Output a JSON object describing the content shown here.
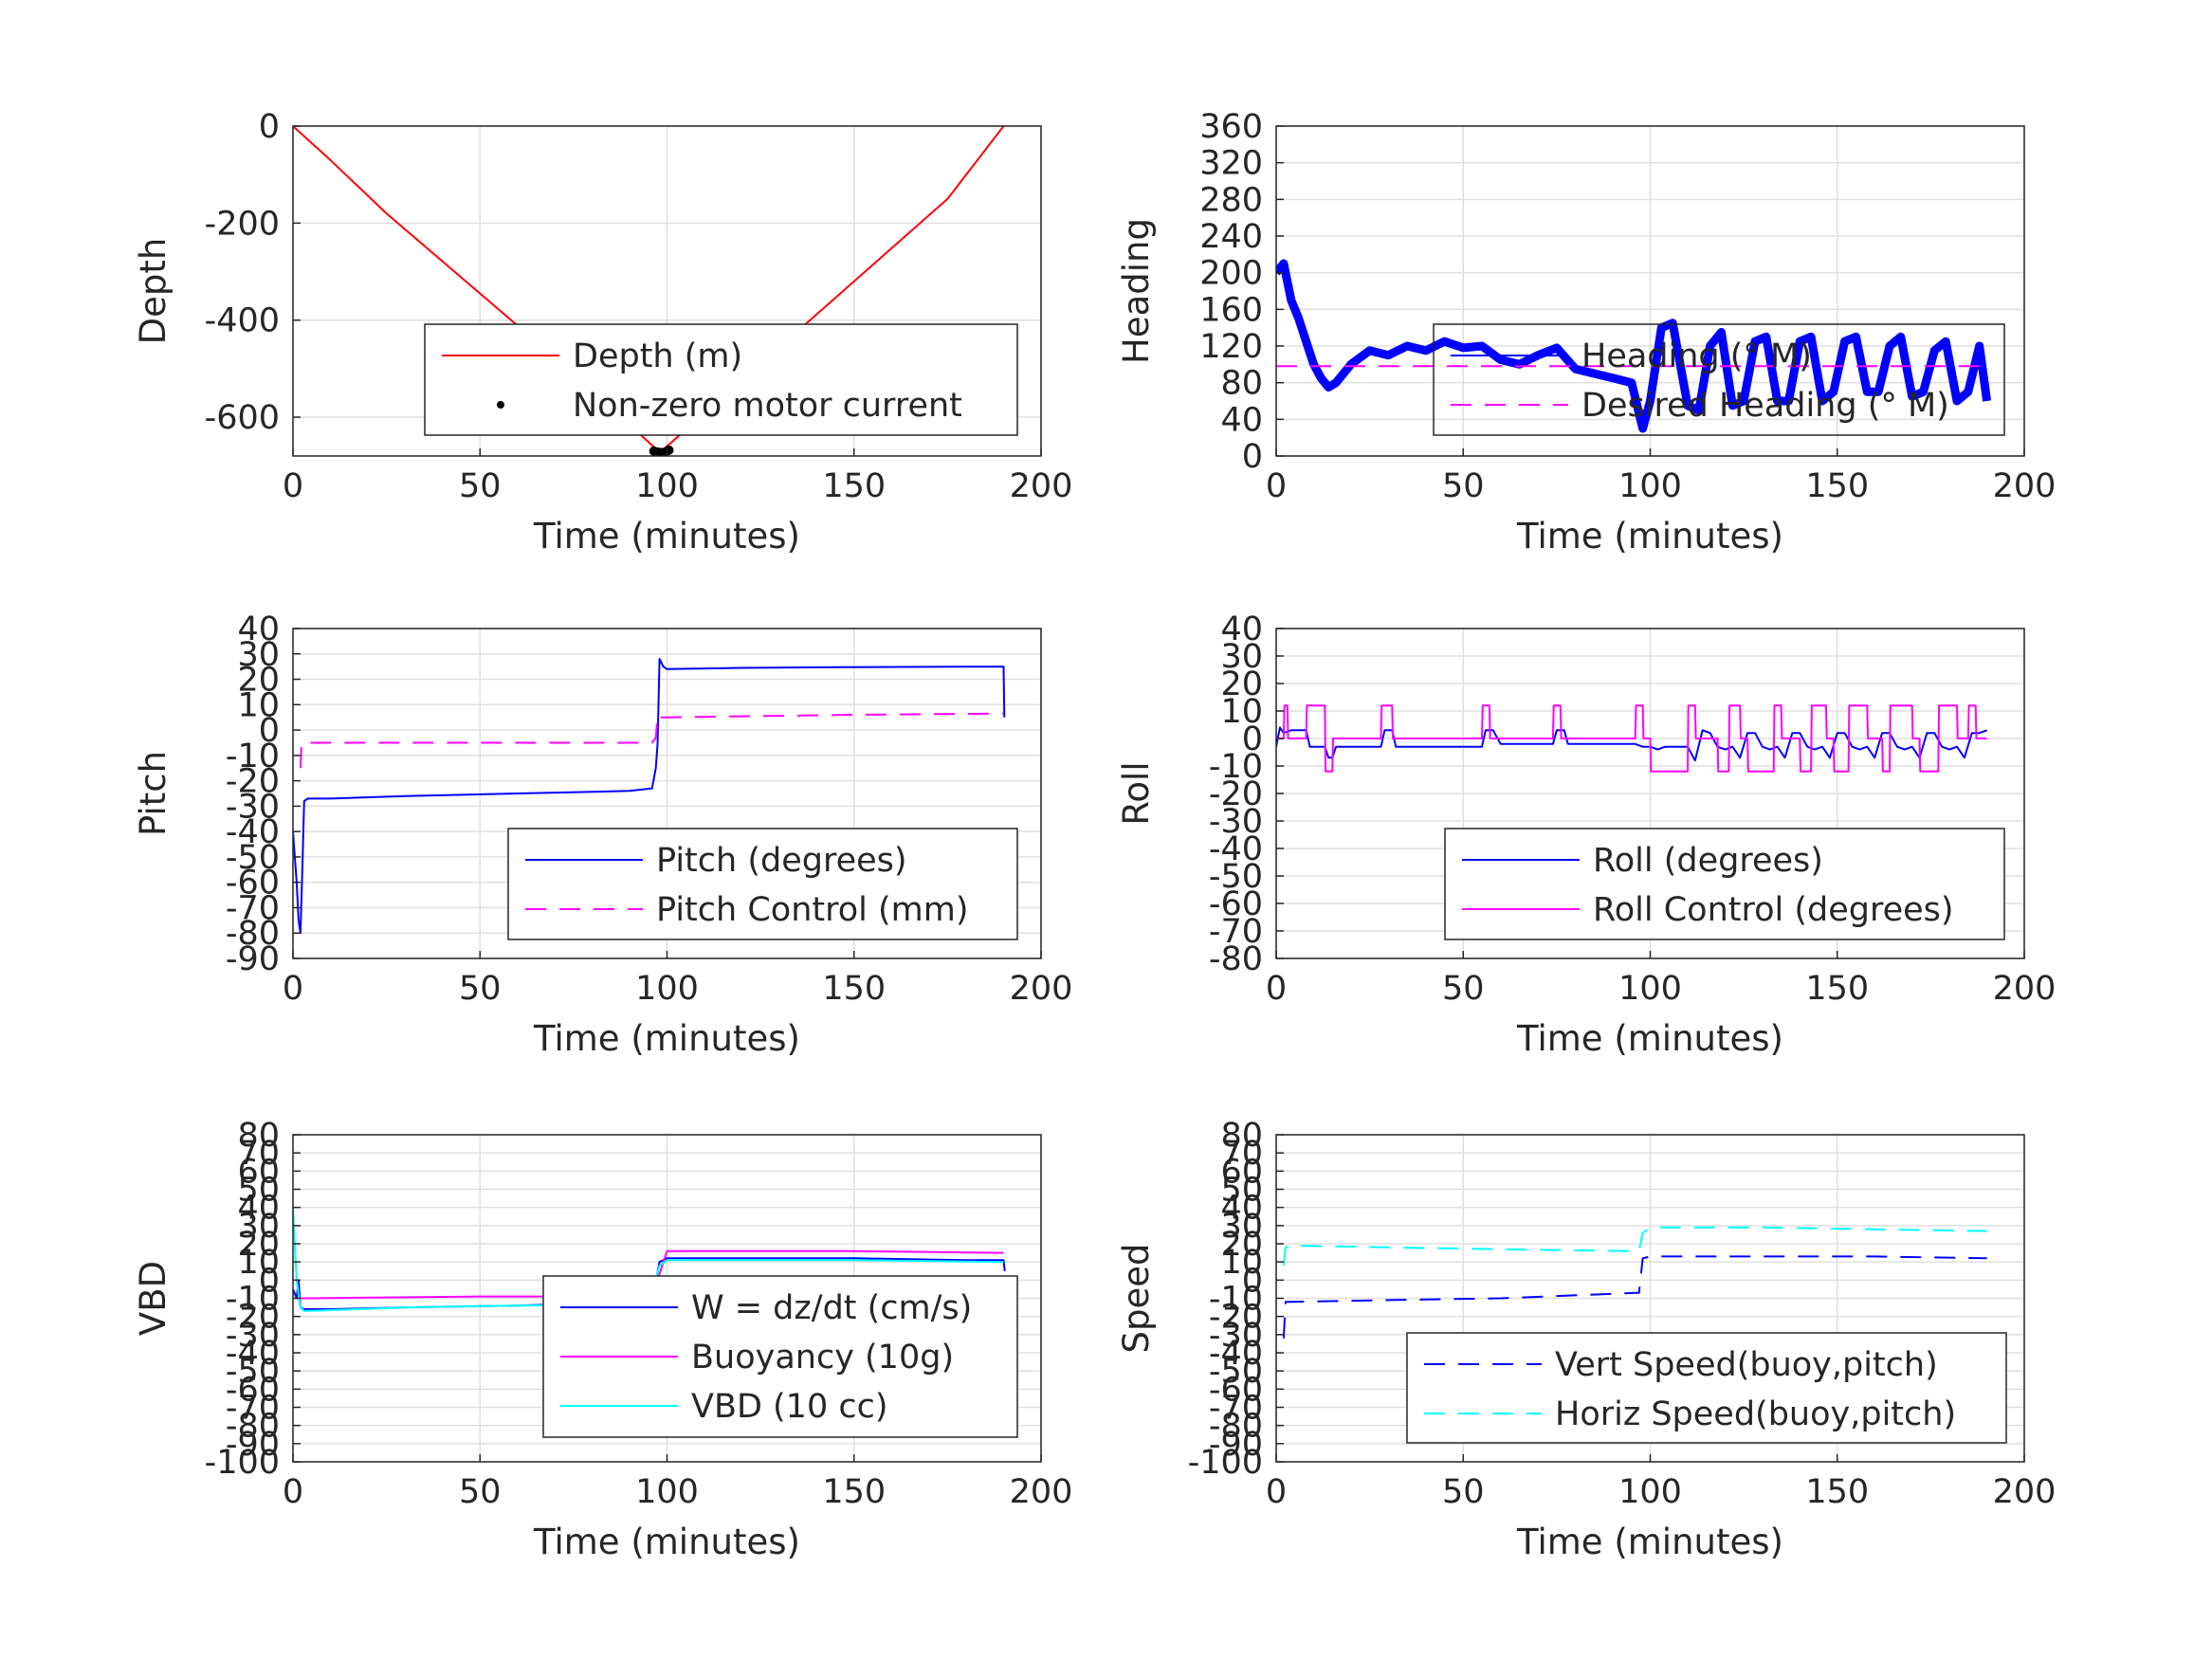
{
  "chart_data": [
    {
      "id": "depth",
      "type": "line",
      "xlabel": "Time (minutes)",
      "ylabel": "Depth",
      "xlim": [
        0,
        200
      ],
      "ylim": [
        -680,
        0
      ],
      "xticks": [
        0,
        50,
        100,
        150,
        200
      ],
      "yticks": [
        0,
        -200,
        -400,
        -600
      ],
      "grid": true,
      "legend": {
        "placement": "bottom-right",
        "entries": [
          "Depth (m)",
          "Non-zero motor current"
        ]
      },
      "series": [
        {
          "name": "Depth (m)",
          "color": "#ff0000",
          "style": "solid",
          "x": [
            0,
            10,
            25,
            50,
            75,
            98,
            100,
            125,
            150,
            175,
            190
          ],
          "y": [
            0,
            -70,
            -180,
            -345,
            -510,
            -672,
            -660,
            -490,
            -320,
            -150,
            0
          ]
        },
        {
          "name": "Non-zero motor current",
          "color": "#000000",
          "style": "dots",
          "x": [
            96.5,
            97.5,
            98.5,
            99.5,
            100.5
          ],
          "y": [
            -670,
            -672,
            -673,
            -672,
            -668
          ]
        }
      ]
    },
    {
      "id": "heading",
      "type": "line",
      "xlabel": "Time (minutes)",
      "ylabel": "Heading",
      "xlim": [
        0,
        200
      ],
      "ylim": [
        0,
        360
      ],
      "xticks": [
        0,
        50,
        100,
        150,
        200
      ],
      "yticks": [
        0,
        40,
        80,
        120,
        160,
        200,
        240,
        280,
        320,
        360
      ],
      "grid": true,
      "legend": {
        "placement": "right",
        "entries": [
          "Heading (° M)",
          "Desired Heading (° M)"
        ]
      },
      "series": [
        {
          "name": "Heading (° M)",
          "color": "#0000ff",
          "style": "thick",
          "x": [
            0,
            2,
            4,
            6,
            8,
            10,
            12,
            14,
            16,
            20,
            25,
            30,
            35,
            40,
            45,
            50,
            55,
            60,
            65,
            70,
            75,
            80,
            85,
            90,
            95,
            98,
            100,
            103,
            106,
            110,
            113,
            116,
            119,
            122,
            125,
            128,
            131,
            134,
            137,
            140,
            143,
            146,
            149,
            152,
            155,
            158,
            161,
            164,
            167,
            170,
            173,
            176,
            179,
            182,
            185,
            188,
            190
          ],
          "y": [
            200,
            210,
            170,
            150,
            125,
            100,
            85,
            75,
            80,
            100,
            115,
            110,
            120,
            115,
            125,
            118,
            120,
            105,
            100,
            110,
            118,
            95,
            90,
            85,
            80,
            30,
            60,
            140,
            145,
            55,
            50,
            120,
            135,
            55,
            60,
            125,
            130,
            60,
            60,
            125,
            130,
            60,
            70,
            125,
            130,
            70,
            70,
            120,
            130,
            65,
            70,
            115,
            125,
            60,
            70,
            120,
            60
          ]
        },
        {
          "name": "Desired Heading (° M)",
          "color": "#ff00ff",
          "style": "dashed",
          "x": [
            0,
            190
          ],
          "y": [
            98,
            98
          ]
        }
      ]
    },
    {
      "id": "pitch",
      "type": "line",
      "xlabel": "Time (minutes)",
      "ylabel": "Pitch",
      "xlim": [
        0,
        200
      ],
      "ylim": [
        -90,
        40
      ],
      "xticks": [
        0,
        50,
        100,
        150,
        200
      ],
      "yticks": [
        40,
        30,
        20,
        10,
        0,
        -10,
        -20,
        -30,
        -40,
        -50,
        -60,
        -70,
        -80,
        -90
      ],
      "grid": true,
      "legend": {
        "placement": "bottom-right",
        "entries": [
          "Pitch (degrees)",
          "Pitch Control (mm)"
        ]
      },
      "series": [
        {
          "name": "Pitch (degrees)",
          "color": "#0000ff",
          "style": "solid",
          "x": [
            0,
            1,
            1.5,
            2,
            2.5,
            3,
            4,
            10,
            30,
            60,
            90,
            96,
            97,
            97.5,
            98,
            99,
            100,
            120,
            150,
            180,
            190,
            190.2
          ],
          "y": [
            -40,
            -60,
            -75,
            -80,
            -55,
            -28,
            -27,
            -27,
            -26,
            -25,
            -24,
            -23,
            -15,
            -5,
            28,
            25,
            24,
            24.5,
            24.8,
            25,
            25,
            5
          ]
        },
        {
          "name": "Pitch Control (mm)",
          "color": "#ff00ff",
          "style": "dashed",
          "x": [
            2,
            2.3,
            3,
            50,
            96,
            97,
            97.5,
            98,
            100,
            150,
            190
          ],
          "y": [
            -15,
            -5,
            -5,
            -5,
            -5,
            -3,
            6,
            5,
            5,
            6,
            6.5
          ]
        }
      ]
    },
    {
      "id": "roll",
      "type": "line",
      "xlabel": "Time (minutes)",
      "ylabel": "Roll",
      "xlim": [
        0,
        200
      ],
      "ylim": [
        -80,
        40
      ],
      "xticks": [
        0,
        50,
        100,
        150,
        200
      ],
      "yticks": [
        40,
        30,
        20,
        10,
        0,
        -10,
        -20,
        -30,
        -40,
        -50,
        -60,
        -70,
        -80
      ],
      "grid": true,
      "legend": {
        "placement": "bottom-right",
        "entries": [
          "Roll (degrees)",
          "Roll Control (degrees)"
        ]
      },
      "series": [
        {
          "name": "Roll (degrees)",
          "color": "#0000ff",
          "style": "solid",
          "x": [
            0,
            1,
            2,
            4,
            8,
            9,
            12,
            13,
            14,
            15,
            16,
            20,
            28,
            29,
            31,
            32,
            40,
            55,
            56,
            58,
            60,
            74,
            75,
            77,
            78,
            95,
            96,
            98,
            100,
            102,
            104,
            110,
            112,
            114,
            116,
            118,
            120,
            122,
            124,
            126,
            128,
            130,
            132,
            134,
            136,
            138,
            140,
            142,
            144,
            146,
            148,
            150,
            152,
            154,
            156,
            158,
            160,
            162,
            164,
            166,
            168,
            170,
            172,
            174,
            176,
            178,
            180,
            182,
            184,
            186,
            188,
            190
          ],
          "y": [
            -3,
            4,
            2,
            3,
            3,
            -3,
            -3,
            -3,
            -7,
            -7,
            -3,
            -3,
            -3,
            3,
            3,
            -3,
            -3,
            -3,
            3,
            3,
            -2,
            -2,
            3,
            3,
            -2,
            -2,
            -2,
            -3,
            -3,
            -4,
            -3,
            -3,
            -8,
            3,
            2,
            -3,
            -4,
            -3,
            -7,
            2,
            2,
            -3,
            -4,
            -3,
            -7,
            2,
            2,
            -3,
            -4,
            -3,
            -7,
            2,
            2,
            -3,
            -4,
            -3,
            -7,
            2,
            2,
            -3,
            -4,
            -3,
            -7,
            2,
            2,
            -3,
            -4,
            -3,
            -7,
            2,
            2,
            3
          ]
        },
        {
          "name": "Roll Control (degrees)",
          "color": "#ff00ff",
          "style": "solid",
          "x": [
            0,
            2,
            2.2,
            3,
            3.2,
            8,
            8.2,
            13,
            13.2,
            15,
            15.2,
            28,
            28.2,
            31,
            31.2,
            55,
            55.2,
            57,
            57.2,
            74,
            74.2,
            76,
            76.2,
            96,
            96.2,
            98,
            98.2,
            100,
            100.2,
            110,
            110.2,
            112,
            112.2,
            118,
            118.2,
            121,
            121.2,
            124,
            124.2,
            126,
            126.2,
            133,
            133.2,
            135,
            135.2,
            140,
            140.2,
            143,
            143.2,
            147,
            147.2,
            149,
            149.2,
            153,
            153.2,
            158,
            158.2,
            162,
            162.2,
            164,
            164.2,
            170,
            170.2,
            172,
            172.2,
            177,
            177.2,
            182,
            182.2,
            185,
            185.2,
            187,
            187.2,
            190
          ],
          "y": [
            0,
            0,
            12,
            12,
            0,
            0,
            12,
            12,
            -12,
            -12,
            0,
            0,
            12,
            12,
            0,
            0,
            12,
            12,
            0,
            0,
            12,
            12,
            0,
            0,
            12,
            12,
            0,
            0,
            -12,
            -12,
            12,
            12,
            0,
            0,
            -12,
            -12,
            12,
            12,
            0,
            0,
            -12,
            -12,
            12,
            12,
            0,
            0,
            -12,
            -12,
            12,
            12,
            0,
            0,
            -12,
            -12,
            12,
            12,
            0,
            0,
            -12,
            -12,
            12,
            12,
            0,
            0,
            -12,
            -12,
            12,
            12,
            0,
            0,
            12,
            12,
            0,
            0
          ]
        }
      ]
    },
    {
      "id": "vbd",
      "type": "line",
      "xlabel": "Time (minutes)",
      "ylabel": "VBD",
      "xlim": [
        0,
        200
      ],
      "ylim": [
        -100,
        80
      ],
      "xticks": [
        0,
        50,
        100,
        150,
        200
      ],
      "yticks": [
        80,
        70,
        60,
        50,
        40,
        30,
        20,
        10,
        0,
        -10,
        -20,
        -30,
        -40,
        -50,
        -60,
        -70,
        -80,
        -90,
        -100
      ],
      "ytick_labels": [
        "80",
        "70",
        "60",
        "50",
        "40",
        "30",
        "20",
        "10",
        "0",
        "-10",
        "-20",
        "-30",
        "-40",
        "-50",
        "-60",
        "-70",
        "-80",
        "-90",
        "-100"
      ],
      "grid": true,
      "legend": {
        "placement": "bottom-right",
        "entries": [
          "W = dz/dt (cm/s)",
          "Buoyancy (10g)",
          "VBD (10 cc)"
        ]
      },
      "series": [
        {
          "name": "W = dz/dt (cm/s)",
          "color": "#0000ff",
          "style": "solid",
          "x": [
            0,
            1,
            1.5,
            2,
            3,
            4,
            10,
            30,
            60,
            90,
            96,
            98,
            100,
            120,
            150,
            180,
            190,
            190.3
          ],
          "y": [
            -5,
            -10,
            0,
            -15,
            -16,
            -16,
            -16,
            -15,
            -14,
            -12,
            -11,
            10,
            12,
            12,
            12,
            11,
            11,
            5
          ]
        },
        {
          "name": "Buoyancy (10g)",
          "color": "#ff00ff",
          "style": "solid",
          "x": [
            2,
            4,
            50,
            95,
            96,
            100,
            150,
            190
          ],
          "y": [
            -10,
            -10,
            -9,
            -9,
            -9,
            16,
            16,
            15
          ]
        },
        {
          "name": "VBD (10 cc)",
          "color": "#00ffff",
          "style": "solid",
          "x": [
            0,
            1,
            2,
            3,
            4,
            30,
            60,
            95,
            98,
            100,
            150,
            190
          ],
          "y": [
            40,
            0,
            -15,
            -17,
            -17,
            -15,
            -14,
            -13,
            8,
            11,
            11,
            10
          ]
        }
      ]
    },
    {
      "id": "speed",
      "type": "line",
      "xlabel": "Time (minutes)",
      "ylabel": "Speed",
      "xlim": [
        0,
        200
      ],
      "ylim": [
        -100,
        80
      ],
      "xticks": [
        0,
        50,
        100,
        150,
        200
      ],
      "yticks": [
        80,
        70,
        60,
        50,
        40,
        30,
        20,
        10,
        0,
        -10,
        -20,
        -30,
        -40,
        -50,
        -60,
        -70,
        -80,
        -90,
        -100
      ],
      "ytick_labels": [
        "80",
        "70",
        "60",
        "50",
        "40",
        "30",
        "20",
        "10",
        "0",
        "-10",
        "-20",
        "-30",
        "-40",
        "-50",
        "-60",
        "-70",
        "-80",
        "-90",
        "-100"
      ],
      "grid": true,
      "legend": {
        "placement": "bottom-right",
        "entries": [
          "Vert Speed(buoy,pitch)",
          "Horiz Speed(buoy,pitch)"
        ]
      },
      "series": [
        {
          "name": "Vert Speed(buoy,pitch)",
          "color": "#0000ff",
          "style": "dashed",
          "x": [
            2,
            2.5,
            4,
            30,
            60,
            96,
            97,
            98,
            100,
            130,
            160,
            190
          ],
          "y": [
            -32,
            -12,
            -12,
            -11,
            -10,
            -7,
            -7,
            12,
            13,
            13,
            13,
            12
          ]
        },
        {
          "name": "Horiz Speed(buoy,pitch)",
          "color": "#00ffff",
          "style": "dashed",
          "x": [
            2,
            2.5,
            4,
            30,
            60,
            96,
            97,
            98,
            100,
            130,
            160,
            190
          ],
          "y": [
            8,
            18,
            19,
            18,
            17,
            16,
            16,
            26,
            29,
            29,
            28,
            27
          ]
        }
      ]
    }
  ]
}
